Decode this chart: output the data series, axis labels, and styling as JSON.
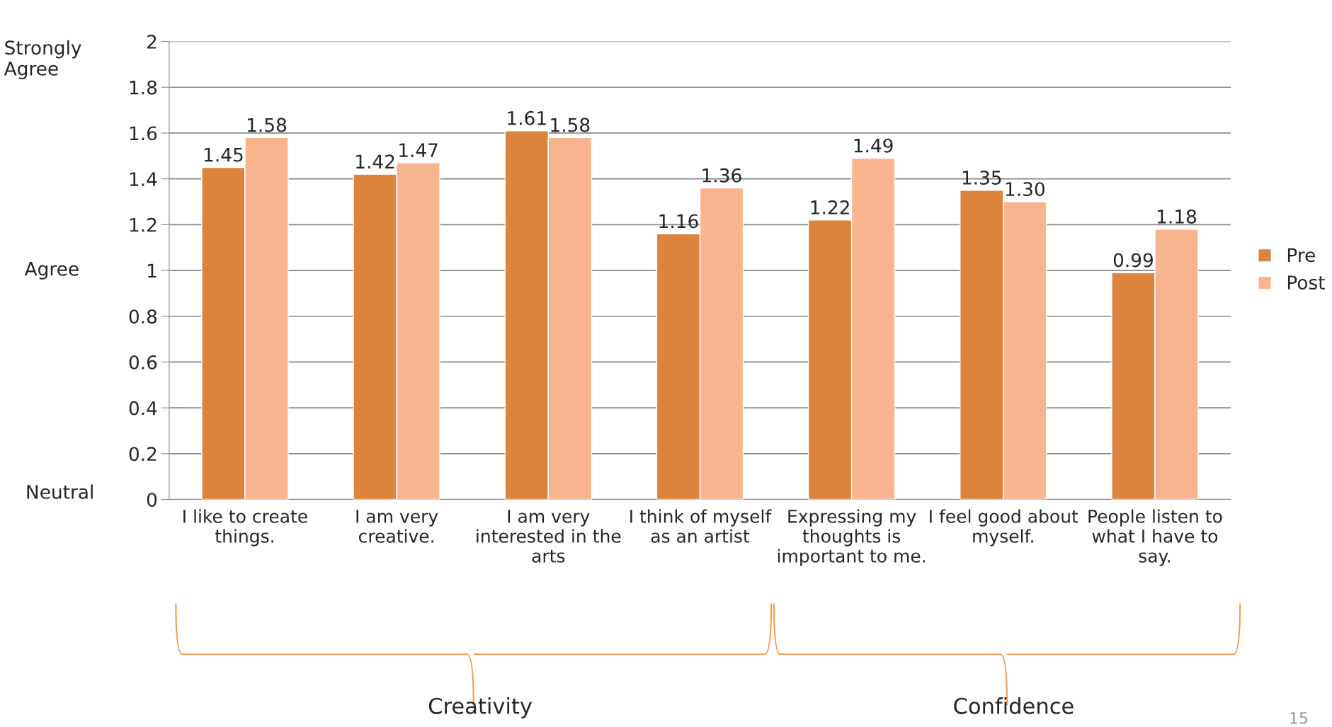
{
  "chart_data": {
    "type": "bar",
    "categories": [
      "I like to create things.",
      "I am very creative.",
      "I am very interested in the arts",
      "I think of myself as an artist",
      "Expressing my thoughts is important to me.",
      "I feel good about myself.",
      "People listen to what I have to say."
    ],
    "series": [
      {
        "name": "Pre",
        "color": "#dc843e",
        "values": [
          1.45,
          1.42,
          1.61,
          1.16,
          1.22,
          1.35,
          0.99
        ],
        "value_labels": [
          "1.45",
          "1.42",
          "1.61",
          "1.16",
          "1.22",
          "1.35",
          "0.99"
        ]
      },
      {
        "name": "Post",
        "color": "#f8b48f",
        "values": [
          1.58,
          1.47,
          1.58,
          1.36,
          1.49,
          1.3,
          1.18
        ],
        "value_labels": [
          "1.58",
          "1.47",
          "1.58",
          "1.36",
          "1.49",
          "1.30",
          "1.18"
        ]
      }
    ],
    "ylim": [
      0,
      2
    ],
    "yticks": [
      0,
      0.2,
      0.4,
      0.6,
      0.8,
      1,
      1.2,
      1.4,
      1.6,
      1.8,
      2
    ],
    "grid": "y",
    "legend": "right",
    "annotations": [
      "Strongly Agree",
      "Agree",
      "Neutral",
      "Creativity",
      "Confidence",
      "15"
    ]
  }
}
